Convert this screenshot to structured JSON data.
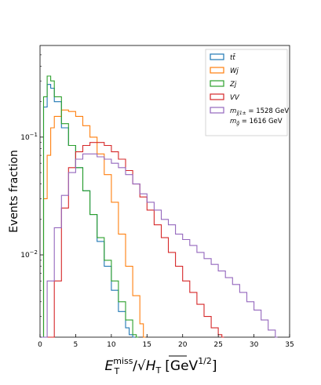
{
  "chart_data": {
    "type": "line",
    "xlabel": {
      "main": "E",
      "sub": "T",
      "sup": "miss",
      "mid": "/",
      "root": "H",
      "root_sub": "T",
      "unit": "[GeV",
      "unit_sup": "1/2",
      "unit_end": "]"
    },
    "ylabel": "Events fraction",
    "xlim": [
      0,
      35
    ],
    "ylim": [
      0.002,
      0.6
    ],
    "yscale": "log",
    "x_ticks": [
      "0",
      "5",
      "10",
      "15",
      "20",
      "25",
      "30",
      "35"
    ],
    "y_ticks": [
      {
        "base": "10",
        "exp": "−1",
        "value": 0.1
      },
      {
        "base": "10",
        "exp": "−2",
        "value": 0.01
      }
    ],
    "legend_position": "top-right",
    "series": [
      {
        "name": "tt̄",
        "color": "#1f77b4",
        "x": [
          0,
          0.5,
          1,
          1.5,
          2,
          3,
          4,
          5,
          6,
          7,
          8,
          9,
          10,
          11,
          12,
          12.5,
          13
        ],
        "values": [
          0.002,
          0.18,
          0.28,
          0.26,
          0.2,
          0.12,
          0.085,
          0.055,
          0.035,
          0.022,
          0.013,
          0.008,
          0.005,
          0.0033,
          0.0024,
          0.0021,
          0.002
        ]
      },
      {
        "name": "Wj",
        "color": "#ff7f0e",
        "x": [
          0,
          0.5,
          1,
          1.5,
          2,
          3,
          4,
          5,
          6,
          7,
          8,
          9,
          10,
          11,
          12,
          13,
          14,
          14.5
        ],
        "values": [
          0.002,
          0.03,
          0.07,
          0.12,
          0.15,
          0.17,
          0.165,
          0.15,
          0.125,
          0.1,
          0.072,
          0.048,
          0.028,
          0.015,
          0.008,
          0.0045,
          0.0026,
          0.002
        ]
      },
      {
        "name": "Zj",
        "color": "#2ca02c",
        "x": [
          0,
          0.5,
          1,
          1.5,
          2,
          3,
          4,
          5,
          6,
          7,
          8,
          9,
          10,
          11,
          12,
          13,
          13.5
        ],
        "values": [
          0.002,
          0.22,
          0.33,
          0.3,
          0.22,
          0.13,
          0.085,
          0.055,
          0.035,
          0.022,
          0.014,
          0.009,
          0.006,
          0.004,
          0.0028,
          0.0021,
          0.002
        ]
      },
      {
        "name": "VV",
        "color": "#d62728",
        "x": [
          0,
          1,
          2,
          3,
          4,
          5,
          6,
          7,
          8,
          9,
          10,
          11,
          12,
          13,
          14,
          15,
          16,
          17,
          18,
          19,
          20,
          21,
          22,
          23,
          24,
          25,
          25.5
        ],
        "values": [
          0.002,
          0.002,
          0.006,
          0.025,
          0.055,
          0.075,
          0.085,
          0.09,
          0.09,
          0.085,
          0.075,
          0.065,
          0.052,
          0.04,
          0.031,
          0.024,
          0.018,
          0.014,
          0.0105,
          0.008,
          0.006,
          0.0048,
          0.0038,
          0.003,
          0.0024,
          0.0021,
          0.002
        ]
      },
      {
        "name": "m_χ̃1± = 1528 GeV, m_g̃ = 1616 GeV",
        "label_line1": {
          "pre": "m",
          "sub": "χ̃1±",
          "post": " = 1528 GeV"
        },
        "label_line2": {
          "pre": "m",
          "sub": "g̃",
          "post": " = 1616 GeV"
        },
        "color": "#9467bd",
        "x": [
          0,
          1,
          2,
          3,
          4,
          5,
          6,
          7,
          8,
          9,
          10,
          11,
          12,
          13,
          14,
          15,
          16,
          17,
          18,
          19,
          20,
          21,
          22,
          23,
          24,
          25,
          26,
          27,
          28,
          29,
          30,
          31,
          32,
          33
        ],
        "values": [
          0.002,
          0.006,
          0.017,
          0.032,
          0.05,
          0.065,
          0.072,
          0.072,
          0.068,
          0.065,
          0.06,
          0.055,
          0.048,
          0.04,
          0.033,
          0.028,
          0.024,
          0.02,
          0.018,
          0.015,
          0.0135,
          0.012,
          0.0105,
          0.0093,
          0.0083,
          0.0073,
          0.0064,
          0.0056,
          0.0048,
          0.004,
          0.0034,
          0.0028,
          0.0023,
          0.002
        ]
      }
    ]
  }
}
